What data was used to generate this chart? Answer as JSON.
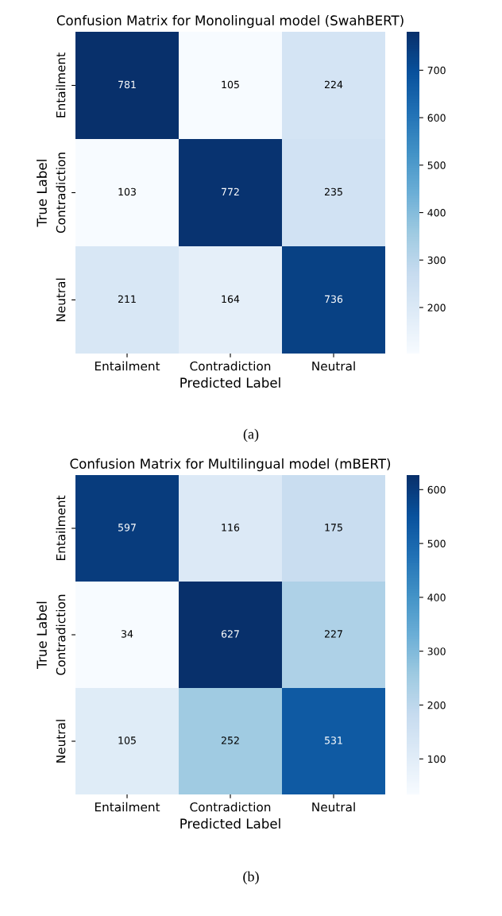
{
  "chart_data": [
    {
      "type": "heatmap",
      "title": "Confusion Matrix for Monolingual model (SwahBERT)",
      "xlabel": "Predicted Label",
      "ylabel": "True Label",
      "categories": [
        "Entailment",
        "Contradiction",
        "Neutral"
      ],
      "y_categories": [
        "Entailment",
        "Contradiction",
        "Neutral"
      ],
      "cells": [
        [
          781,
          105,
          224
        ],
        [
          103,
          772,
          235
        ],
        [
          211,
          164,
          736
        ]
      ],
      "clim": [
        103,
        781
      ],
      "cticks": [
        200,
        300,
        400,
        500,
        600,
        700
      ],
      "data_labels": true,
      "annotations": [
        "(a)"
      ]
    },
    {
      "type": "heatmap",
      "title": "Confusion Matrix for Multilingual model (mBERT)",
      "xlabel": "Predicted Label",
      "ylabel": "True Label",
      "categories": [
        "Entailment",
        "Contradiction",
        "Neutral"
      ],
      "y_categories": [
        "Entailment",
        "Contradiction",
        "Neutral"
      ],
      "cells": [
        [
          597,
          116,
          175
        ],
        [
          34,
          627,
          227
        ],
        [
          105,
          252,
          531
        ]
      ],
      "clim": [
        34,
        627
      ],
      "cticks": [
        100,
        200,
        300,
        400,
        500,
        600
      ],
      "data_labels": true,
      "annotations": [
        "(b)"
      ]
    }
  ]
}
